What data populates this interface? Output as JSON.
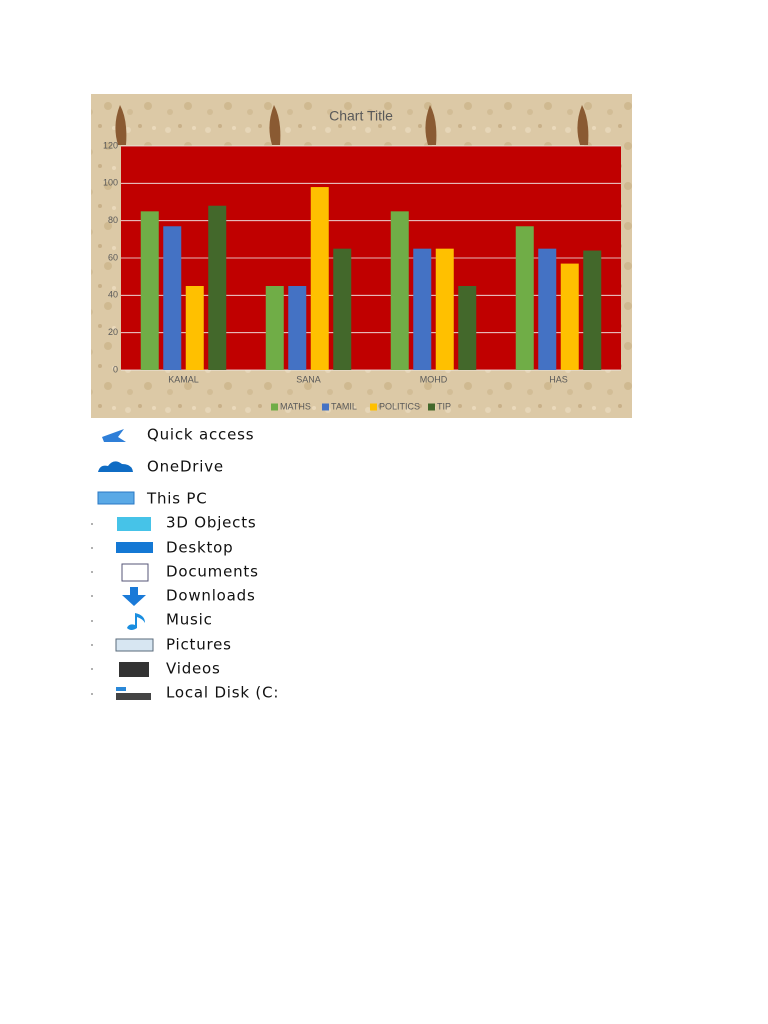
{
  "chart_data": {
    "type": "bar",
    "title": "Chart Title",
    "categories": [
      "KAMAL",
      "SANA",
      "MOHD",
      "HAS"
    ],
    "series": [
      {
        "name": "MATHS",
        "color": "#70ad47",
        "values": [
          85,
          45,
          85,
          77
        ]
      },
      {
        "name": "TAMIL",
        "color": "#4472c4",
        "values": [
          77,
          45,
          65,
          65
        ]
      },
      {
        "name": "POLITICS",
        "color": "#ffc000",
        "values": [
          45,
          98,
          65,
          57
        ]
      },
      {
        "name": "TIP",
        "color": "#43682b",
        "values": [
          88,
          65,
          45,
          64
        ]
      }
    ],
    "ylim": [
      0,
      120
    ],
    "yticks": [
      0,
      20,
      40,
      60,
      80,
      100,
      120
    ],
    "grid": true,
    "legend": "bottom"
  },
  "navigation": {
    "items": [
      "Quick access",
      "OneDrive",
      "This PC",
      "3D Objects",
      "Desktop",
      "Documents",
      "Downloads",
      "Music",
      "Pictures",
      "Videos",
      "Local Disk (C:"
    ]
  }
}
